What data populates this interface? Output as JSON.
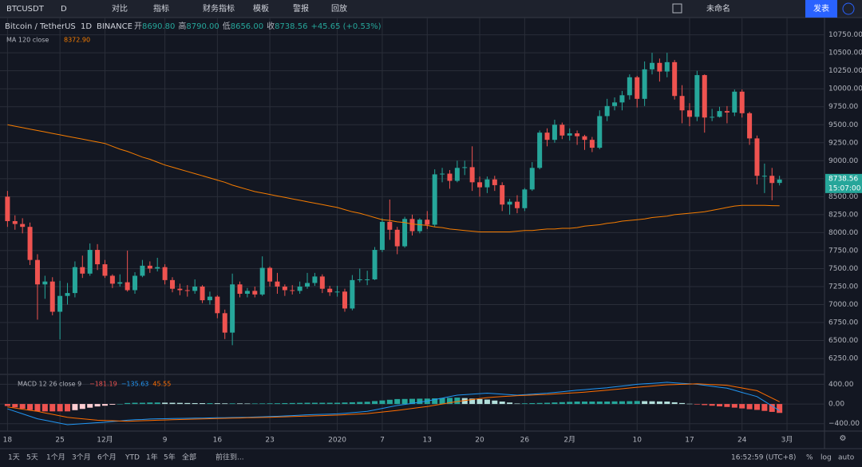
{
  "toolbar": {
    "symbol": "BTCUSDT",
    "interval": "D",
    "buttons": [
      "对比",
      "指标",
      "财务指标",
      "模板",
      "警报",
      "回放"
    ],
    "layout_name": "未命名",
    "publish": "发表"
  },
  "legend": {
    "title": "Bitcoin / TetherUS",
    "interval": "1D",
    "exchange": "BINANCE",
    "ohlc": [
      {
        "label": "开",
        "value": "8690.80"
      },
      {
        "label": "高",
        "value": "8790.00"
      },
      {
        "label": "低",
        "value": "8656.00"
      },
      {
        "label": "收",
        "value": "8738.56"
      }
    ],
    "change": "+45.65 (+0.53%)"
  },
  "ma_legend_value": "8372.90",
  "macd_legend": {
    "name": "MACD 12 26 close 9",
    "values": [
      "−181.19",
      "−135.63",
      "45.55"
    ]
  },
  "price_label": "8738.56",
  "countdown": "15:07:00",
  "chart_data": {
    "type": "candlestick",
    "up_color": "#26a69a",
    "down_color": "#ef5350",
    "grid": true,
    "xlim": [
      -1,
      109
    ],
    "xticks": [
      {
        "value": 0,
        "label": "18"
      },
      {
        "value": 7,
        "label": "25"
      },
      {
        "value": 13,
        "label": "12月"
      },
      {
        "value": 21,
        "label": "9"
      },
      {
        "value": 28,
        "label": "16"
      },
      {
        "value": 35,
        "label": "23"
      },
      {
        "value": 44,
        "label": "2020"
      },
      {
        "value": 50,
        "label": "7"
      },
      {
        "value": 56,
        "label": "13"
      },
      {
        "value": 63,
        "label": "20"
      },
      {
        "value": 69,
        "label": "26"
      },
      {
        "value": 75,
        "label": "2月"
      },
      {
        "value": 84,
        "label": "10"
      },
      {
        "value": 91,
        "label": "17"
      },
      {
        "value": 98,
        "label": "24"
      },
      {
        "value": 104,
        "label": "3月"
      }
    ],
    "ylim": [
      6040,
      10990
    ],
    "yticks": [
      {
        "value": 6250,
        "label": "6250.00"
      },
      {
        "value": 6500,
        "label": "6500.00"
      },
      {
        "value": 6750,
        "label": "6750.00"
      },
      {
        "value": 7000,
        "label": "7000.00"
      },
      {
        "value": 7250,
        "label": "7250.00"
      },
      {
        "value": 7500,
        "label": "7500.00"
      },
      {
        "value": 7750,
        "label": "7750.00"
      },
      {
        "value": 8000,
        "label": "8000.00"
      },
      {
        "value": 8250,
        "label": "8250.00"
      },
      {
        "value": 8500,
        "label": "8500.00"
      },
      {
        "value": 8750,
        "label": "8750.00"
      },
      {
        "value": 9000,
        "label": "9000.00"
      },
      {
        "value": 9250,
        "label": "9250.00"
      },
      {
        "value": 9500,
        "label": "9500.00"
      },
      {
        "value": 9750,
        "label": "9750.00"
      },
      {
        "value": 10000,
        "label": "10000.00"
      },
      {
        "value": 10250,
        "label": "10250.00"
      },
      {
        "value": 10500,
        "label": "10500.00"
      },
      {
        "value": 10750,
        "label": "10750.00"
      }
    ],
    "open": [
      8500,
      8160,
      8120,
      8080,
      7620,
      7280,
      7320,
      6900,
      7120,
      7160,
      7520,
      7430,
      7760,
      7560,
      7400,
      7290,
      7310,
      7200,
      7400,
      7540,
      7500,
      7520,
      7340,
      7220,
      7200,
      7190,
      7250,
      7060,
      7110,
      6880,
      6610,
      7280,
      7150,
      7190,
      7140,
      7510,
      7320,
      7250,
      7200,
      7190,
      7250,
      7300,
      7390,
      7220,
      7170,
      7180,
      6945,
      7340,
      7350,
      7350,
      7760,
      8150,
      8040,
      7810,
      8190,
      8020,
      8180,
      8110,
      8810,
      8820,
      8720,
      8900,
      8910,
      8700,
      8630,
      8740,
      8660,
      8390,
      8430,
      8340,
      8600,
      8900,
      9390,
      9290,
      9500,
      9350,
      9380,
      9340,
      9290,
      9180,
      9620,
      9760,
      9810,
      9910,
      10160,
      9860,
      10270,
      10360,
      10240,
      10370,
      9900,
      9700,
      9610,
      10190,
      9600,
      9610,
      9690,
      9670,
      9960,
      9660,
      9310,
      8790,
      8790,
      8690.8
    ],
    "high": [
      8580,
      8240,
      8200,
      8140,
      7700,
      7400,
      7380,
      7330,
      7300,
      7600,
      7680,
      7850,
      7840,
      7620,
      7420,
      7420,
      7750,
      7450,
      7620,
      7600,
      7650,
      7560,
      7380,
      7290,
      7270,
      7350,
      7270,
      7180,
      7130,
      6930,
      7430,
      7320,
      7230,
      7250,
      7670,
      7530,
      7440,
      7280,
      7270,
      7320,
      7440,
      7440,
      7420,
      7260,
      7260,
      7220,
      7410,
      7500,
      7470,
      7800,
      8200,
      8460,
      8080,
      8220,
      8250,
      8200,
      8300,
      8880,
      8900,
      8870,
      9000,
      9000,
      9200,
      8780,
      8780,
      8790,
      8700,
      8470,
      8520,
      8620,
      8980,
      9420,
      9450,
      9570,
      9530,
      9450,
      9420,
      9360,
      9330,
      9700,
      9860,
      9880,
      9970,
      10200,
      10180,
      10380,
      10500,
      10420,
      10500,
      10400,
      10050,
      9800,
      10250,
      10200,
      9720,
      9750,
      9760,
      9990,
      9990,
      9680,
      9350,
      8960,
      8900,
      8790
    ],
    "low": [
      8080,
      8040,
      7990,
      7550,
      6790,
      7080,
      6850,
      6515,
      7000,
      7100,
      7370,
      7400,
      7480,
      7370,
      7230,
      7250,
      7180,
      7150,
      7380,
      7440,
      7460,
      7280,
      7170,
      7130,
      7110,
      7150,
      7020,
      7000,
      6810,
      6520,
      6435,
      7100,
      7100,
      7100,
      7120,
      7250,
      7150,
      7120,
      7140,
      7150,
      7220,
      7260,
      7160,
      7120,
      7110,
      6900,
      6920,
      7310,
      7270,
      7340,
      7730,
      7900,
      7700,
      7790,
      7960,
      7990,
      8050,
      8080,
      8700,
      8610,
      8700,
      8800,
      8580,
      8500,
      8550,
      8580,
      8300,
      8250,
      8270,
      8300,
      8580,
      8880,
      9200,
      9250,
      9300,
      9280,
      9220,
      9150,
      9120,
      9160,
      9550,
      9700,
      9700,
      9850,
      9740,
      9760,
      10200,
      10100,
      10160,
      9850,
      9520,
      9480,
      9550,
      9390,
      9550,
      9600,
      9520,
      9620,
      9600,
      9220,
      8670,
      8550,
      8450,
      8656
    ],
    "close": [
      8160,
      8120,
      8080,
      7620,
      7280,
      7320,
      6900,
      7120,
      7160,
      7520,
      7430,
      7760,
      7560,
      7400,
      7290,
      7310,
      7200,
      7400,
      7540,
      7500,
      7520,
      7340,
      7220,
      7200,
      7190,
      7250,
      7060,
      7110,
      6880,
      6610,
      7280,
      7150,
      7190,
      7140,
      7510,
      7320,
      7250,
      7200,
      7190,
      7250,
      7300,
      7390,
      7220,
      7170,
      7180,
      6945,
      7340,
      7350,
      7350,
      7760,
      8150,
      8040,
      7810,
      8190,
      8020,
      8180,
      8110,
      8810,
      8820,
      8720,
      8900,
      8910,
      8700,
      8630,
      8740,
      8660,
      8390,
      8430,
      8340,
      8600,
      8900,
      9390,
      9290,
      9500,
      9350,
      9380,
      9340,
      9290,
      9180,
      9620,
      9760,
      9810,
      9910,
      10160,
      9860,
      10270,
      10360,
      10240,
      10370,
      9900,
      9700,
      9610,
      10190,
      9600,
      9610,
      9690,
      9670,
      9960,
      9660,
      9310,
      8790,
      8790,
      8690,
      8738.56
    ],
    "series": [
      {
        "name": "MA 120 close",
        "color": "#f57c00",
        "values": [
          9500,
          9480,
          9460,
          9440,
          9420,
          9400,
          9380,
          9360,
          9340,
          9320,
          9300,
          9280,
          9260,
          9240,
          9200,
          9160,
          9130,
          9090,
          9050,
          9020,
          8980,
          8940,
          8910,
          8880,
          8850,
          8820,
          8790,
          8760,
          8730,
          8700,
          8660,
          8630,
          8600,
          8570,
          8550,
          8530,
          8510,
          8490,
          8470,
          8450,
          8430,
          8410,
          8390,
          8370,
          8350,
          8320,
          8290,
          8270,
          8240,
          8210,
          8180,
          8170,
          8150,
          8140,
          8120,
          8110,
          8100,
          8080,
          8070,
          8050,
          8040,
          8030,
          8020,
          8010,
          8010,
          8010,
          8010,
          8010,
          8020,
          8030,
          8030,
          8040,
          8050,
          8050,
          8060,
          8060,
          8070,
          8090,
          8100,
          8110,
          8130,
          8140,
          8160,
          8170,
          8180,
          8190,
          8210,
          8220,
          8230,
          8250,
          8260,
          8270,
          8280,
          8290,
          8310,
          8330,
          8350,
          8370,
          8380,
          8380,
          8380,
          8380,
          8375,
          8372.9
        ]
      }
    ],
    "macd": {
      "ylim": [
        -550,
        585
      ],
      "yticks": [
        {
          "value": 400,
          "label": "400.00"
        },
        {
          "value": 0,
          "label": "0.00"
        },
        {
          "value": -400,
          "label": "−400.00"
        }
      ],
      "macd_color": "#2196f3",
      "signal_color": "#ff6d00",
      "histogram": [
        -40,
        -68,
        -95,
        -122,
        -150,
        -150,
        -150,
        -150,
        -150,
        -125,
        -100,
        -75,
        -50,
        -35,
        -15,
        0,
        20,
        25,
        25,
        30,
        30,
        27,
        25,
        23,
        20,
        18,
        17,
        17,
        15,
        13,
        13,
        12,
        10,
        11,
        12,
        14,
        15,
        18,
        20,
        22,
        25,
        25,
        25,
        25,
        25,
        30,
        35,
        41,
        45,
        59,
        72,
        86,
        100,
        102,
        105,
        108,
        110,
        115,
        120,
        125,
        130,
        120,
        110,
        100,
        90,
        70,
        50,
        30,
        10,
        14,
        18,
        21,
        25,
        31,
        38,
        44,
        50,
        50,
        50,
        50,
        50,
        53,
        55,
        57,
        60,
        58,
        55,
        52,
        50,
        35,
        20,
        5,
        -10,
        -22,
        -35,
        -48,
        -60,
        -74,
        -90,
        -106,
        -120,
        -140,
        -160,
        -181.19
      ],
      "macd": [
        -100,
        -150,
        -200,
        -250,
        -300,
        -330,
        -360,
        -390,
        -420,
        -410,
        -400,
        -390,
        -380,
        -370,
        -355,
        -345,
        -330,
        -320,
        -315,
        -305,
        -300,
        -298,
        -295,
        -292,
        -290,
        -288,
        -285,
        -282,
        -280,
        -278,
        -275,
        -272,
        -270,
        -265,
        -260,
        -255,
        -250,
        -242,
        -235,
        -228,
        -220,
        -215,
        -210,
        -205,
        -200,
        -188,
        -175,
        -162,
        -150,
        -120,
        -90,
        -60,
        -30,
        -8,
        15,
        38,
        60,
        90,
        120,
        150,
        180,
        190,
        200,
        210,
        220,
        210,
        200,
        190,
        180,
        190,
        200,
        210,
        220,
        235,
        250,
        265,
        280,
        292,
        305,
        318,
        330,
        348,
        365,
        382,
        400,
        410,
        420,
        430,
        440,
        430,
        420,
        410,
        400,
        380,
        360,
        340,
        320,
        278,
        235,
        192,
        150,
        55,
        -40,
        -135.63
      ],
      "signal": [
        -60,
        -82,
        -105,
        -128,
        -150,
        -180,
        -210,
        -240,
        -270,
        -285,
        -300,
        -315,
        -330,
        -335,
        -340,
        -345,
        -350,
        -345,
        -340,
        -335,
        -330,
        -325,
        -320,
        -315,
        -310,
        -306,
        -302,
        -299,
        -295,
        -291,
        -288,
        -284,
        -280,
        -276,
        -272,
        -269,
        -265,
        -260,
        -255,
        -250,
        -245,
        -240,
        -235,
        -230,
        -225,
        -218,
        -210,
        -203,
        -195,
        -179,
        -162,
        -146,
        -130,
        -110,
        -90,
        -70,
        -50,
        -25,
        0,
        25,
        50,
        70,
        90,
        110,
        130,
        140,
        150,
        160,
        170,
        176,
        182,
        189,
        195,
        204,
        212,
        221,
        230,
        242,
        255,
        268,
        280,
        295,
        310,
        325,
        340,
        352,
        365,
        378,
        390,
        395,
        400,
        405,
        410,
        402,
        395,
        388,
        380,
        352,
        325,
        298,
        270,
        195,
        120,
        45.55
      ]
    }
  },
  "bottom_bar": {
    "ranges": [
      "1天",
      "5天",
      "1个月",
      "3个月",
      "6个月",
      "YTD",
      "1年",
      "5年",
      "全部"
    ],
    "goto": "前往到...",
    "time": "16:52:59 (UTC+8)",
    "options": [
      "%",
      "log",
      "auto"
    ]
  }
}
